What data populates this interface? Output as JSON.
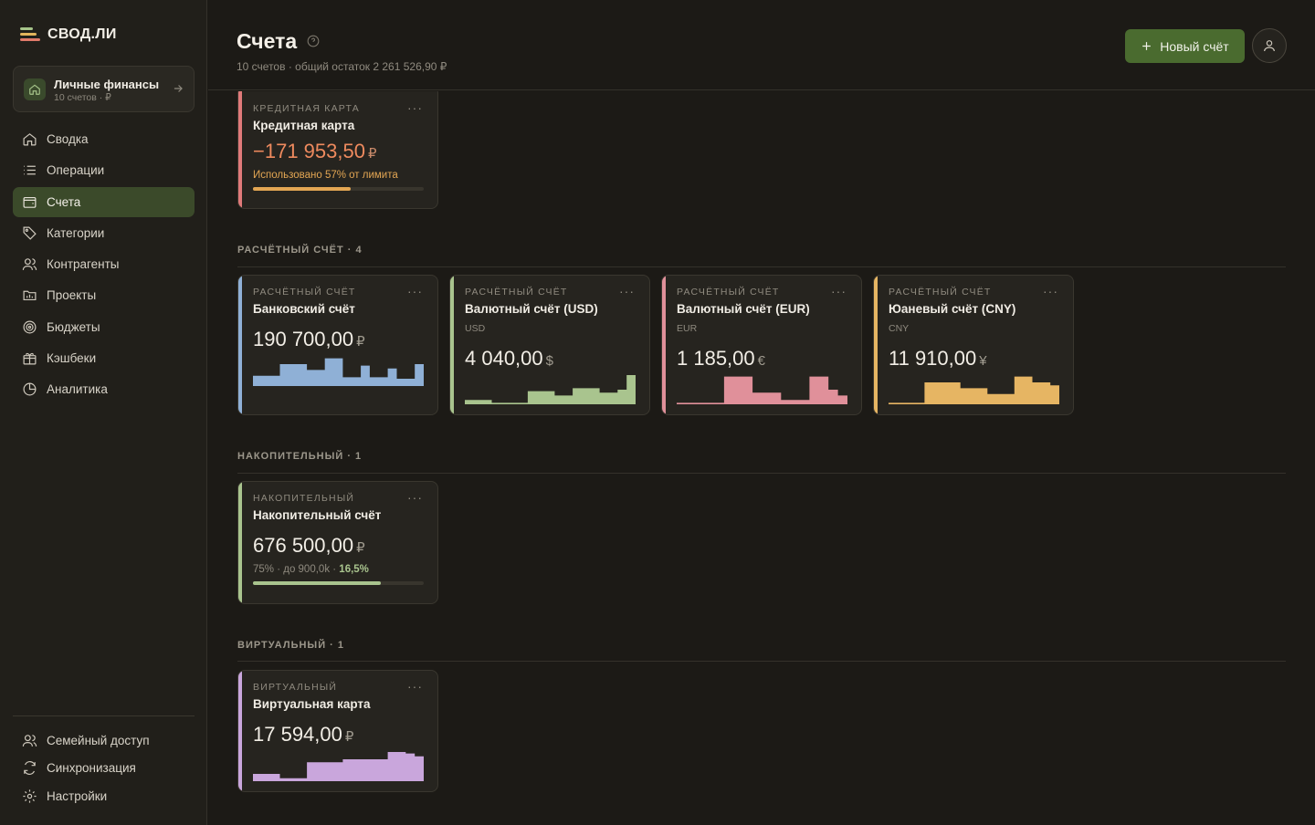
{
  "brand": {
    "name": "СВОД.ЛИ"
  },
  "workspace": {
    "title": "Личные финансы",
    "subtitle": "10 счетов · ₽"
  },
  "nav": [
    {
      "label": "Сводка",
      "icon": "home-icon"
    },
    {
      "label": "Операции",
      "icon": "list-icon"
    },
    {
      "label": "Счета",
      "icon": "wallet-icon",
      "active": true
    },
    {
      "label": "Категории",
      "icon": "tag-icon"
    },
    {
      "label": "Контрагенты",
      "icon": "users-icon"
    },
    {
      "label": "Проекты",
      "icon": "folder-icon"
    },
    {
      "label": "Бюджеты",
      "icon": "target-icon"
    },
    {
      "label": "Кэшбеки",
      "icon": "gift-icon"
    },
    {
      "label": "Аналитика",
      "icon": "pie-chart-icon"
    }
  ],
  "bottom_nav": [
    {
      "label": "Семейный доступ",
      "icon": "family-icon"
    },
    {
      "label": "Синхронизация",
      "icon": "sync-icon"
    },
    {
      "label": "Настройки",
      "icon": "gear-icon"
    }
  ],
  "header": {
    "title": "Счета",
    "subtitle": "10 счетов · общий остаток 2 261 526,90 ₽",
    "new_button": "Новый счёт"
  },
  "colors": {
    "credit": "#e07a7a",
    "bank": "#8fb0d6",
    "usd": "#a9c48e",
    "eur": "#e0909a",
    "cny": "#e6b563",
    "savings": "#a9c48e",
    "virtual": "#c9a6dc"
  },
  "sections": {
    "settlement": "РАСЧЁТНЫЙ СЧЁТ · 4",
    "savings": "НАКОПИТЕЛЬНЫЙ · 1",
    "virtual": "ВИРТУАЛЬНЫЙ · 1"
  },
  "cards": {
    "credit": {
      "type": "КРЕДИТНАЯ КАРТА",
      "name": "Кредитная карта",
      "amount": "−171 953,50",
      "symbol": "₽",
      "note": "Использовано 57% от лимита",
      "progress": 0.57
    },
    "bank": {
      "type": "РАСЧЁТНЫЙ СЧЁТ",
      "name": "Банковский счёт",
      "amount": "190 700,00",
      "symbol": "₽"
    },
    "usd": {
      "type": "РАСЧЁТНЫЙ СЧЁТ",
      "name": "Валютный счёт (USD)",
      "currency": "USD",
      "amount": "4 040,00",
      "symbol": "$"
    },
    "eur": {
      "type": "РАСЧЁТНЫЙ СЧЁТ",
      "name": "Валютный счёт (EUR)",
      "currency": "EUR",
      "amount": "1 185,00",
      "symbol": "€"
    },
    "cny": {
      "type": "РАСЧЁТНЫЙ СЧЁТ",
      "name": "Юаневый счёт (CNY)",
      "currency": "CNY",
      "amount": "11 910,00",
      "symbol": "¥"
    },
    "savings": {
      "type": "НАКОПИТЕЛЬНЫЙ",
      "name": "Накопительный счёт",
      "amount": "676 500,00",
      "symbol": "₽",
      "note_main": "75% · до 900,0k · ",
      "note_rate": "16,5%",
      "progress": 0.75
    },
    "virtual": {
      "type": "ВИРТУАЛЬНЫЙ",
      "name": "Виртуальная карта",
      "amount": "17 594,00",
      "symbol": "₽"
    }
  },
  "sparklines": {
    "bank": [
      0.35,
      0.35,
      0.35,
      0.75,
      0.75,
      0.75,
      0.55,
      0.55,
      0.95,
      0.95,
      0.3,
      0.3,
      0.7,
      0.3,
      0.3,
      0.6,
      0.25,
      0.25,
      0.75
    ],
    "usd": [
      0.15,
      0.15,
      0.15,
      0.05,
      0.05,
      0.05,
      0.05,
      0.45,
      0.45,
      0.45,
      0.3,
      0.3,
      0.55,
      0.55,
      0.55,
      0.4,
      0.4,
      0.5,
      1.0
    ],
    "eur": [
      0.05,
      0.05,
      0.05,
      0.05,
      0.05,
      0.95,
      0.95,
      0.95,
      0.4,
      0.4,
      0.4,
      0.15,
      0.15,
      0.15,
      0.95,
      0.95,
      0.5,
      0.3
    ],
    "cny": [
      0.05,
      0.05,
      0.05,
      0.05,
      0.75,
      0.75,
      0.75,
      0.75,
      0.55,
      0.55,
      0.55,
      0.35,
      0.35,
      0.35,
      0.95,
      0.95,
      0.75,
      0.75,
      0.65
    ],
    "virtual": [
      0.25,
      0.25,
      0.25,
      0.1,
      0.1,
      0.1,
      0.65,
      0.65,
      0.65,
      0.65,
      0.75,
      0.75,
      0.75,
      0.75,
      0.75,
      1.0,
      1.0,
      0.95,
      0.85
    ]
  }
}
